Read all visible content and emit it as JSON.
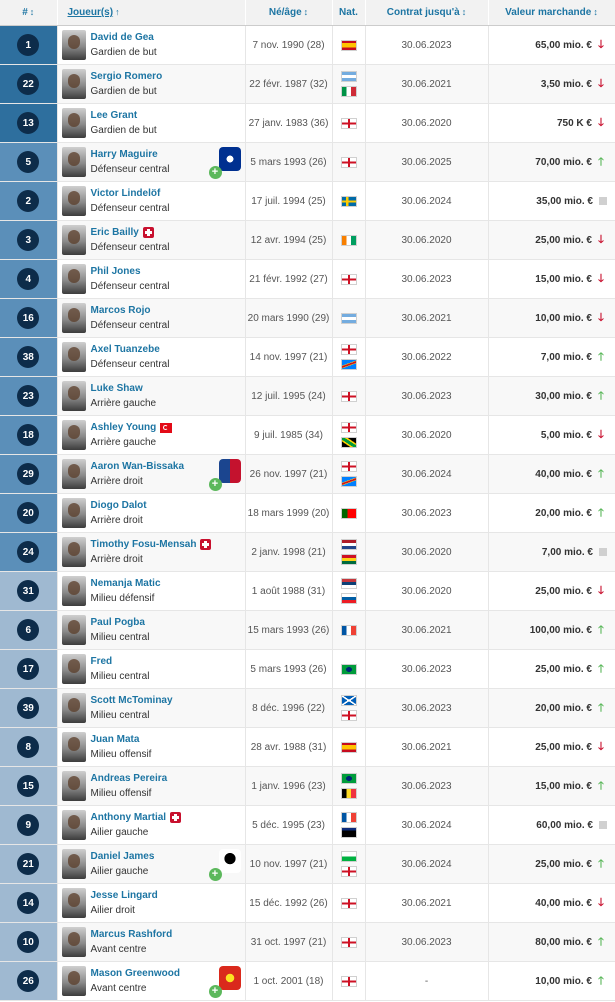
{
  "header": {
    "num": "#",
    "player": "Joueur(s)",
    "age": "Né/âge",
    "nat": "Nat.",
    "contract": "Contrat jusqu'à",
    "value": "Valeur marchande"
  },
  "colors": {
    "link": "#1d75a3",
    "up": "#5cb85c",
    "down": "#c8102e",
    "number_bg_gk": "#2e6f9e",
    "number_bg_def": "#5b8fb9",
    "number_bg_mid": "#9fb9d1",
    "number_text": "#0d2c4a"
  },
  "players": [
    {
      "num": "1",
      "name": "David de Gea",
      "pos": "Gardien de but",
      "born": "7 nov. 1990 (28)",
      "nat": [
        "es"
      ],
      "contract": "30.06.2023",
      "value": "65,00 mio. €",
      "trend": "down",
      "group": "gk"
    },
    {
      "num": "22",
      "name": "Sergio Romero",
      "pos": "Gardien de but",
      "born": "22 févr. 1987 (32)",
      "nat": [
        "ar",
        "it"
      ],
      "contract": "30.06.2021",
      "value": "3,50 mio. €",
      "trend": "down",
      "group": "gk"
    },
    {
      "num": "13",
      "name": "Lee Grant",
      "pos": "Gardien de but",
      "born": "27 janv. 1983 (36)",
      "nat": [
        "en"
      ],
      "contract": "30.06.2020",
      "value": "750 K €",
      "trend": "down",
      "group": "gk"
    },
    {
      "num": "5",
      "name": "Harry Maguire",
      "pos": "Défenseur central",
      "born": "5 mars 1993 (26)",
      "nat": [
        "en"
      ],
      "contract": "30.06.2025",
      "value": "70,00 mio. €",
      "trend": "up",
      "group": "def",
      "loan": "leicester"
    },
    {
      "num": "2",
      "name": "Victor Lindelöf",
      "pos": "Défenseur central",
      "born": "17 juil. 1994 (25)",
      "nat": [
        "se"
      ],
      "contract": "30.06.2024",
      "value": "35,00 mio. €",
      "trend": "flat",
      "group": "def"
    },
    {
      "num": "3",
      "name": "Eric Bailly",
      "pos": "Défenseur central",
      "born": "12 avr. 1994 (25)",
      "nat": [
        "ci"
      ],
      "contract": "30.06.2020",
      "value": "25,00 mio. €",
      "trend": "down",
      "group": "def",
      "injury": true
    },
    {
      "num": "4",
      "name": "Phil Jones",
      "pos": "Défenseur central",
      "born": "21 févr. 1992 (27)",
      "nat": [
        "en"
      ],
      "contract": "30.06.2023",
      "value": "15,00 mio. €",
      "trend": "down",
      "group": "def"
    },
    {
      "num": "16",
      "name": "Marcos Rojo",
      "pos": "Défenseur central",
      "born": "20 mars 1990 (29)",
      "nat": [
        "ar"
      ],
      "contract": "30.06.2021",
      "value": "10,00 mio. €",
      "trend": "down",
      "group": "def"
    },
    {
      "num": "38",
      "name": "Axel Tuanzebe",
      "pos": "Défenseur central",
      "born": "14 nov. 1997 (21)",
      "nat": [
        "en",
        "cd"
      ],
      "contract": "30.06.2022",
      "value": "7,00 mio. €",
      "trend": "up",
      "group": "def"
    },
    {
      "num": "23",
      "name": "Luke Shaw",
      "pos": "Arrière gauche",
      "born": "12 juil. 1995 (24)",
      "nat": [
        "en"
      ],
      "contract": "30.06.2023",
      "value": "30,00 mio. €",
      "trend": "up",
      "group": "def"
    },
    {
      "num": "18",
      "name": "Ashley Young",
      "pos": "Arrière gauche",
      "born": "9 juil. 1985 (34)",
      "nat": [
        "en",
        "jm"
      ],
      "contract": "30.06.2020",
      "value": "5,00 mio. €",
      "trend": "down",
      "group": "def",
      "captain": true
    },
    {
      "num": "29",
      "name": "Aaron Wan-Bissaka",
      "pos": "Arrière droit",
      "born": "26 nov. 1997 (21)",
      "nat": [
        "en",
        "cd"
      ],
      "contract": "30.06.2024",
      "value": "40,00 mio. €",
      "trend": "up",
      "group": "def",
      "loan": "palace"
    },
    {
      "num": "20",
      "name": "Diogo Dalot",
      "pos": "Arrière droit",
      "born": "18 mars 1999 (20)",
      "nat": [
        "pt"
      ],
      "contract": "30.06.2023",
      "value": "20,00 mio. €",
      "trend": "up",
      "group": "def"
    },
    {
      "num": "24",
      "name": "Timothy Fosu-Mensah",
      "pos": "Arrière droit",
      "born": "2 janv. 1998 (21)",
      "nat": [
        "nl",
        "gh"
      ],
      "contract": "30.06.2020",
      "value": "7,00 mio. €",
      "trend": "flat",
      "group": "def",
      "injury": true
    },
    {
      "num": "31",
      "name": "Nemanja Matic",
      "pos": "Milieu défensif",
      "born": "1 août 1988 (31)",
      "nat": [
        "rs",
        "si"
      ],
      "contract": "30.06.2020",
      "value": "25,00 mio. €",
      "trend": "down",
      "group": "mid"
    },
    {
      "num": "6",
      "name": "Paul Pogba",
      "pos": "Milieu central",
      "born": "15 mars 1993 (26)",
      "nat": [
        "fr"
      ],
      "contract": "30.06.2021",
      "value": "100,00 mio. €",
      "trend": "up",
      "group": "mid"
    },
    {
      "num": "17",
      "name": "Fred",
      "pos": "Milieu central",
      "born": "5 mars 1993 (26)",
      "nat": [
        "br"
      ],
      "contract": "30.06.2023",
      "value": "25,00 mio. €",
      "trend": "up",
      "group": "mid"
    },
    {
      "num": "39",
      "name": "Scott McTominay",
      "pos": "Milieu central",
      "born": "8 déc. 1996 (22)",
      "nat": [
        "sc",
        "en"
      ],
      "contract": "30.06.2023",
      "value": "20,00 mio. €",
      "trend": "up",
      "group": "mid"
    },
    {
      "num": "8",
      "name": "Juan Mata",
      "pos": "Milieu offensif",
      "born": "28 avr. 1988 (31)",
      "nat": [
        "es"
      ],
      "contract": "30.06.2021",
      "value": "25,00 mio. €",
      "trend": "down",
      "group": "mid"
    },
    {
      "num": "15",
      "name": "Andreas Pereira",
      "pos": "Milieu offensif",
      "born": "1 janv. 1996 (23)",
      "nat": [
        "br",
        "be"
      ],
      "contract": "30.06.2023",
      "value": "15,00 mio. €",
      "trend": "up",
      "group": "mid"
    },
    {
      "num": "9",
      "name": "Anthony Martial",
      "pos": "Ailier gauche",
      "born": "5 déc. 1995 (23)",
      "nat": [
        "fr",
        "gp"
      ],
      "contract": "30.06.2024",
      "value": "60,00 mio. €",
      "trend": "flat",
      "group": "mid",
      "injury": true
    },
    {
      "num": "21",
      "name": "Daniel James",
      "pos": "Ailier gauche",
      "born": "10 nov. 1997 (21)",
      "nat": [
        "wa",
        "en"
      ],
      "contract": "30.06.2024",
      "value": "25,00 mio. €",
      "trend": "up",
      "group": "mid",
      "loan": "swansea"
    },
    {
      "num": "14",
      "name": "Jesse Lingard",
      "pos": "Ailier droit",
      "born": "15 déc. 1992 (26)",
      "nat": [
        "en"
      ],
      "contract": "30.06.2021",
      "value": "40,00 mio. €",
      "trend": "down",
      "group": "mid"
    },
    {
      "num": "10",
      "name": "Marcus Rashford",
      "pos": "Avant centre",
      "born": "31 oct. 1997 (21)",
      "nat": [
        "en"
      ],
      "contract": "30.06.2023",
      "value": "80,00 mio. €",
      "trend": "up",
      "group": "mid"
    },
    {
      "num": "26",
      "name": "Mason Greenwood",
      "pos": "Avant centre",
      "born": "1 oct. 2001 (18)",
      "nat": [
        "en"
      ],
      "contract": "-",
      "value": "10,00 mio. €",
      "trend": "up",
      "group": "mid",
      "loan": "manutd"
    }
  ]
}
